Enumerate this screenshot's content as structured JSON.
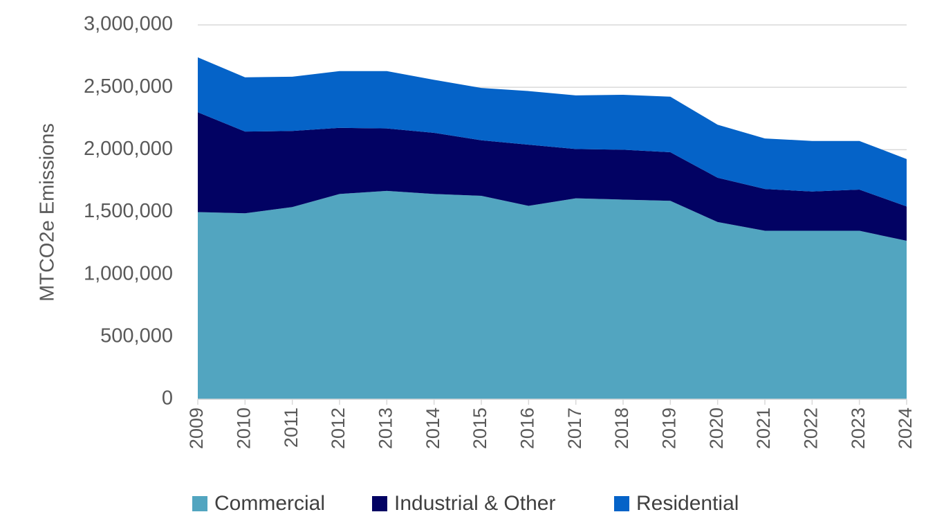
{
  "chart_data": {
    "type": "stacked_area",
    "y_label": "MTCO2e Emissions",
    "categories": [
      "2009",
      "2010",
      "2011",
      "2012",
      "2013",
      "2014",
      "2015",
      "2016",
      "2017",
      "2018",
      "2019",
      "2020",
      "2021",
      "2022",
      "2023",
      "2024"
    ],
    "series": [
      {
        "name": "Commercial",
        "color": "#52a5c0",
        "values": [
          1500000,
          1490000,
          1540000,
          1645000,
          1670000,
          1645000,
          1630000,
          1550000,
          1610000,
          1600000,
          1590000,
          1420000,
          1350000,
          1350000,
          1350000,
          1270000
        ]
      },
      {
        "name": "Industrial & Other",
        "color": "#020263",
        "values": [
          800000,
          655000,
          610000,
          530000,
          500000,
          490000,
          445000,
          490000,
          395000,
          400000,
          390000,
          355000,
          335000,
          315000,
          330000,
          275000
        ]
      },
      {
        "name": "Residential",
        "color": "#0563c8",
        "values": [
          440000,
          435000,
          435000,
          455000,
          460000,
          425000,
          420000,
          430000,
          430000,
          440000,
          445000,
          425000,
          405000,
          405000,
          390000,
          380000
        ]
      }
    ],
    "ylim": [
      0,
      3000000
    ],
    "yticks": [
      0,
      {
        "value": 500000,
        "label": "500,000"
      },
      {
        "value": 1000000,
        "label": "1,000,000"
      },
      {
        "value": 1500000,
        "label": "1,500,000"
      },
      {
        "value": 2000000,
        "label": "2,000,000"
      },
      {
        "value": 2500000,
        "label": "2,500,000"
      },
      {
        "value": 3000000,
        "label": "3,000,000"
      }
    ],
    "grid": true,
    "legend": "bottom"
  }
}
